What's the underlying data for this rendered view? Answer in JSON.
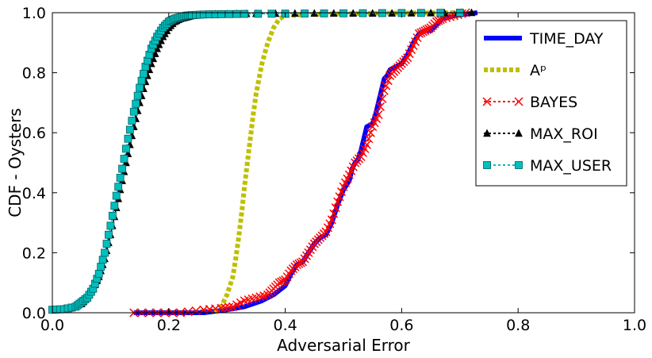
{
  "chart_data": {
    "type": "line",
    "title": "",
    "xlabel": "Adversarial Error",
    "ylabel": "CDF - Oysters",
    "xlim": [
      0.0,
      1.0
    ],
    "ylim": [
      0.0,
      1.0
    ],
    "xticks": [
      "0.0",
      "0.2",
      "0.4",
      "0.6",
      "0.8",
      "1.0"
    ],
    "yticks": [
      "0.0",
      "0.2",
      "0.4",
      "0.6",
      "0.8",
      "1.0"
    ],
    "grid": false,
    "legend_position": "top-right",
    "series": [
      {
        "name": "TIME_DAY",
        "color": "#0000ff",
        "marker": "none",
        "line": "solid",
        "x": [
          0.14,
          0.2,
          0.26,
          0.3,
          0.33,
          0.36,
          0.38,
          0.4,
          0.41,
          0.42,
          0.43,
          0.44,
          0.45,
          0.46,
          0.47,
          0.48,
          0.49,
          0.5,
          0.51,
          0.515,
          0.52,
          0.525,
          0.53,
          0.535,
          0.54,
          0.55,
          0.555,
          0.56,
          0.565,
          0.57,
          0.575,
          0.58,
          0.59,
          0.6,
          0.61,
          0.62,
          0.63,
          0.64,
          0.65,
          0.66,
          0.67,
          0.69,
          0.71,
          0.73
        ],
        "y": [
          0.0,
          0.0,
          0.0,
          0.01,
          0.02,
          0.04,
          0.06,
          0.09,
          0.13,
          0.16,
          0.17,
          0.2,
          0.23,
          0.25,
          0.26,
          0.3,
          0.36,
          0.41,
          0.44,
          0.48,
          0.5,
          0.51,
          0.54,
          0.58,
          0.62,
          0.63,
          0.66,
          0.7,
          0.74,
          0.78,
          0.79,
          0.81,
          0.82,
          0.83,
          0.86,
          0.9,
          0.93,
          0.94,
          0.94,
          0.96,
          0.98,
          0.99,
          0.995,
          1.0
        ]
      },
      {
        "name": "Aᵖ",
        "color": "#bfbf00",
        "marker": "none",
        "line": "dotted",
        "x": [
          0.28,
          0.29,
          0.3,
          0.31,
          0.315,
          0.32,
          0.325,
          0.33,
          0.335,
          0.34,
          0.345,
          0.35,
          0.36,
          0.37,
          0.38,
          0.39,
          0.4,
          0.45,
          0.55,
          0.7
        ],
        "y": [
          0.0,
          0.02,
          0.06,
          0.12,
          0.18,
          0.25,
          0.33,
          0.42,
          0.5,
          0.58,
          0.66,
          0.73,
          0.83,
          0.9,
          0.95,
          0.98,
          0.99,
          0.995,
          0.998,
          1.0
        ]
      },
      {
        "name": "BAYES",
        "color": "#ff0000",
        "marker": "x",
        "line": "none",
        "x": [
          0.14,
          0.18,
          0.22,
          0.26,
          0.29,
          0.31,
          0.33,
          0.35,
          0.37,
          0.38,
          0.39,
          0.4,
          0.41,
          0.42,
          0.43,
          0.44,
          0.45,
          0.46,
          0.47,
          0.48,
          0.49,
          0.5,
          0.51,
          0.52,
          0.53,
          0.54,
          0.55,
          0.56,
          0.57,
          0.58,
          0.59,
          0.6,
          0.61,
          0.62,
          0.63,
          0.64,
          0.65,
          0.66,
          0.67,
          0.69,
          0.71
        ],
        "y": [
          0.0,
          0.0,
          0.0,
          0.01,
          0.015,
          0.02,
          0.04,
          0.05,
          0.06,
          0.08,
          0.1,
          0.11,
          0.14,
          0.16,
          0.17,
          0.2,
          0.23,
          0.25,
          0.27,
          0.31,
          0.37,
          0.42,
          0.46,
          0.5,
          0.52,
          0.56,
          0.62,
          0.66,
          0.74,
          0.79,
          0.81,
          0.83,
          0.85,
          0.89,
          0.93,
          0.94,
          0.95,
          0.97,
          0.98,
          0.99,
          1.0
        ]
      },
      {
        "name": "MAX_ROI",
        "color": "#000000",
        "marker": "triangle",
        "line": "none",
        "x": [
          0.0,
          0.03,
          0.05,
          0.06,
          0.07,
          0.08,
          0.09,
          0.1,
          0.11,
          0.12,
          0.13,
          0.14,
          0.15,
          0.16,
          0.17,
          0.18,
          0.19,
          0.2,
          0.21,
          0.22,
          0.23,
          0.24,
          0.25,
          0.27,
          0.3,
          0.35,
          0.45,
          0.55,
          0.65,
          0.72
        ],
        "y": [
          0.01,
          0.015,
          0.03,
          0.05,
          0.08,
          0.12,
          0.18,
          0.26,
          0.35,
          0.44,
          0.53,
          0.62,
          0.7,
          0.77,
          0.83,
          0.88,
          0.92,
          0.95,
          0.97,
          0.98,
          0.985,
          0.99,
          0.992,
          0.995,
          0.996,
          0.997,
          0.998,
          0.998,
          0.999,
          1.0
        ]
      },
      {
        "name": "MAX_USER",
        "color": "#00bfbf",
        "marker": "square",
        "line": "none",
        "x": [
          0.0,
          0.02,
          0.04,
          0.05,
          0.06,
          0.07,
          0.08,
          0.09,
          0.1,
          0.11,
          0.12,
          0.13,
          0.14,
          0.15,
          0.16,
          0.17,
          0.18,
          0.19,
          0.2,
          0.21,
          0.22,
          0.23,
          0.24,
          0.26,
          0.29,
          0.33,
          0.4,
          0.5,
          0.6,
          0.7
        ],
        "y": [
          0.01,
          0.012,
          0.02,
          0.035,
          0.05,
          0.08,
          0.13,
          0.2,
          0.29,
          0.39,
          0.48,
          0.58,
          0.67,
          0.75,
          0.82,
          0.88,
          0.92,
          0.95,
          0.97,
          0.98,
          0.985,
          0.99,
          0.992,
          0.994,
          0.995,
          0.996,
          0.997,
          0.998,
          0.999,
          1.0
        ]
      }
    ]
  }
}
